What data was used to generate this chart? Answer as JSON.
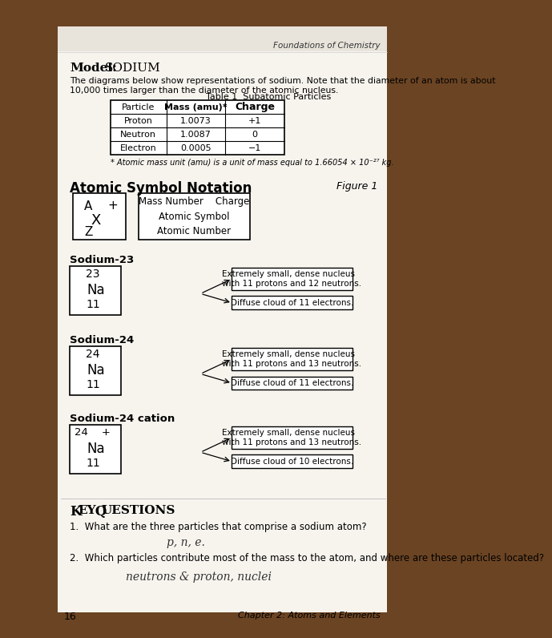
{
  "title_header": "Foundations of Chemistry",
  "model_label": "Model:",
  "model_name": "Sodium",
  "intro_line1": "The diagrams below show representations of sodium. Note that the diameter of an atom is about",
  "intro_line2": "10,000 times larger than the diameter of the atomic nucleus.",
  "table_title": "Table 1  Subatomic Particles",
  "table_headers": [
    "Particle",
    "Mass (amu)*",
    "Charge"
  ],
  "table_rows": [
    [
      "Proton",
      "1.0073",
      "+1"
    ],
    [
      "Neutron",
      "1.0087",
      "0"
    ],
    [
      "Electron",
      "0.0005",
      "−1"
    ]
  ],
  "table_footnote": "* Atomic mass unit (amu) is a unit of mass equal to 1.66054 × 10⁻²⁷ kg.",
  "notation_title": "Atomic Symbol Notation",
  "figure_label": "Figure 1",
  "notation_legend": [
    "Mass Number    Charge",
    "Atomic Symbol",
    "Atomic Number"
  ],
  "sodium23_label": "Sodium-23",
  "sodium23_box": [
    "23",
    "Na",
    "11"
  ],
  "sodium23_nucleus": "Extremely small, dense nucleus\nwith 11 protons and 12 neutrons.",
  "sodium23_electron": "Diffuse cloud of 11 electrons.",
  "sodium24_label": "Sodium-24",
  "sodium24_box": [
    "24",
    "Na",
    "11"
  ],
  "sodium24_nucleus": "Extremely small, dense nucleus\nwith 11 protons and 13 neutrons.",
  "sodium24_electron": "Diffuse cloud of 11 electrons.",
  "sodium24c_label": "Sodium-24 cation",
  "sodium24c_box_line1": "24    +",
  "sodium24c_box_line2": "Na",
  "sodium24c_box_line3": "11",
  "sodium24c_nucleus": "Extremely small, dense nucleus\nwith 11 protons and 13 neutrons.",
  "sodium24c_electron": "Diffuse cloud of 10 electrons.",
  "key_questions_title": "Key Questions",
  "q1": "1.  What are the three particles that comprise a sodium atom?",
  "q1_answer": "p, n, e.",
  "q2": "2.  Which particles contribute most of the mass to the atom, and where are these particles located?",
  "q2_answer": "neutrons & proton, nuclei",
  "page_number": "16",
  "chapter_label": "Chapter 2: Atoms and Elements",
  "bg_brown": "#6b4423",
  "bg_page": "#f0ece4",
  "white_page": "#f7f4ee"
}
